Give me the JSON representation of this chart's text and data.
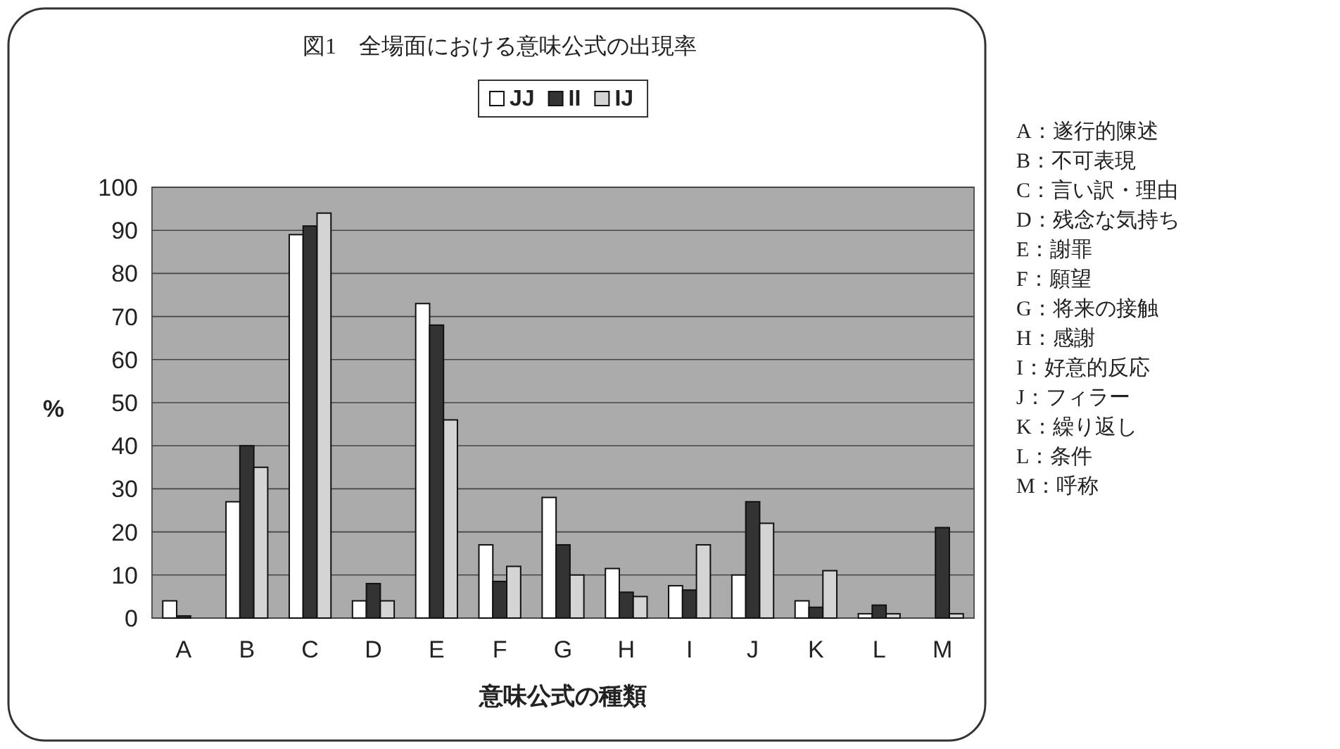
{
  "chart_data": {
    "type": "bar",
    "title": "図1　全場面における意味公式の出現率",
    "xlabel": "意味公式の種類",
    "ylabel": "%",
    "categories": [
      "A",
      "B",
      "C",
      "D",
      "E",
      "F",
      "G",
      "H",
      "I",
      "J",
      "K",
      "L",
      "M"
    ],
    "series": [
      {
        "name": "JJ",
        "color": "#ffffff",
        "values": [
          4,
          27,
          89,
          4,
          73,
          17,
          28,
          11.5,
          7.5,
          10,
          4,
          1,
          0
        ]
      },
      {
        "name": "II",
        "color": "#333333",
        "values": [
          0.5,
          40,
          91,
          8,
          68,
          8.5,
          17,
          6,
          6.5,
          27,
          2.5,
          3,
          21
        ]
      },
      {
        "name": "IJ",
        "color": "#d4d4d4",
        "values": [
          0,
          35,
          94,
          4,
          46,
          12,
          10,
          5,
          17,
          22,
          11,
          1,
          1
        ]
      }
    ],
    "ylim": [
      0,
      100
    ],
    "yticks": [
      0,
      10,
      20,
      30,
      40,
      50,
      60,
      70,
      80,
      90,
      100
    ],
    "grid": "y",
    "legend": "top",
    "annotations": [
      "A：遂行的陳述",
      "B：不可表現",
      "C：言い訳・理由",
      "D：残念な気持ち",
      "E：謝罪",
      "F：願望",
      "G：将来の接触",
      "H：感謝",
      "I：好意的反応",
      "J：フィラー",
      "K：繰り返し",
      "L：条件",
      "M：呼称"
    ]
  }
}
